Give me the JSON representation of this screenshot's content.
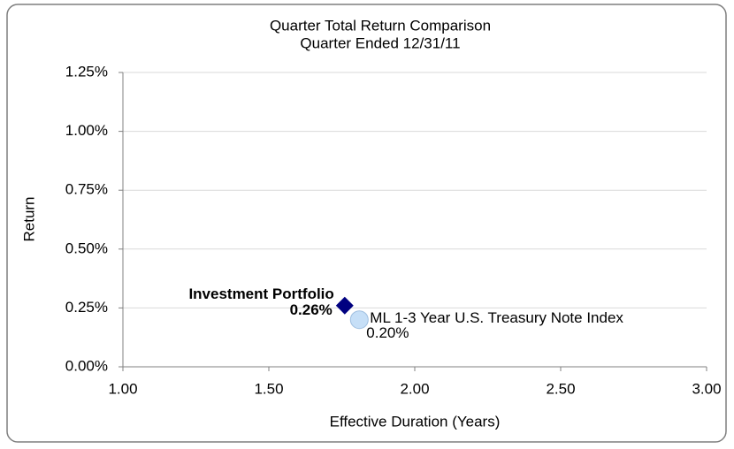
{
  "chart_data": {
    "type": "scatter",
    "title": "Quarter Total Return Comparison",
    "subtitle": "Quarter Ended 12/31/11",
    "x_label": "Effective Duration (Years)",
    "y_label": "Return",
    "xlim": [
      1,
      3
    ],
    "xticks": [
      {
        "value": 1,
        "label": "1.00"
      },
      {
        "value": 1.5,
        "label": "1.50"
      },
      {
        "value": 2,
        "label": "2.00"
      },
      {
        "value": 2.5,
        "label": "2.50"
      },
      {
        "value": 3,
        "label": "3.00"
      }
    ],
    "ylim": [
      0,
      1.25
    ],
    "yticks": [
      {
        "value": 0,
        "label": "0.00%"
      },
      {
        "value": 0.25,
        "label": "0.25%"
      },
      {
        "value": 0.5,
        "label": "0.50%"
      },
      {
        "value": 0.75,
        "label": "0.75%"
      },
      {
        "value": 1,
        "label": "1.00%"
      },
      {
        "value": 1.25,
        "label": "1.25%"
      }
    ],
    "grid": true,
    "series": [
      {
        "name": "Investment Portfolio",
        "color": "#000080",
        "marker": "diamond",
        "x": [
          1.76
        ],
        "values": [
          0.26
        ],
        "value_labels": [
          "0.26%"
        ]
      },
      {
        "name": "ML 1-3 Year U.S. Treasury Note Index",
        "color": "#c6dff7",
        "marker": "circle",
        "x": [
          1.81
        ],
        "values": [
          0.2
        ],
        "value_labels": [
          "0.20%"
        ]
      }
    ]
  }
}
